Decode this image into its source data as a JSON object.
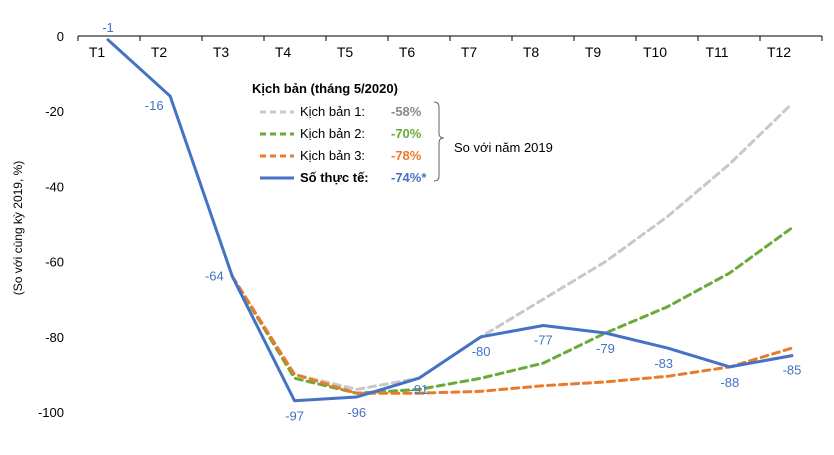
{
  "chart_data": {
    "type": "line",
    "ylabel": "(So với cùng kỳ 2019, %)",
    "ylim": [
      -100,
      0
    ],
    "yticks": [
      0,
      -20,
      -40,
      -60,
      -80,
      -100
    ],
    "categories": [
      "T1",
      "T2",
      "T3",
      "T4",
      "T5",
      "T6",
      "T7",
      "T8",
      "T9",
      "T10",
      "T11",
      "T12"
    ],
    "legend_title": "Kịch bản (tháng 5/2020)",
    "compare_label": "So với năm 2019",
    "colors": {
      "kb1": "#c8c8c8",
      "kb2": "#6aaa3a",
      "kb3": "#e87b2c",
      "actual": "#4472c4"
    },
    "series": [
      {
        "name": "Kịch bản 1:",
        "value_label": "-58%",
        "style": "dashed",
        "color_key": "kb1",
        "values": [
          null,
          null,
          -64,
          -90,
          -94,
          -91,
          -80,
          -70,
          -60,
          -48,
          -34,
          -18
        ]
      },
      {
        "name": "Kịch bản 2:",
        "value_label": "-70%",
        "style": "dashed",
        "color_key": "kb2",
        "values": [
          null,
          null,
          -64,
          -91,
          -95,
          -94,
          -91,
          -87,
          -79,
          -72,
          -63,
          -51
        ]
      },
      {
        "name": "Kịch bản 3:",
        "value_label": "-78%",
        "style": "dashed",
        "color_key": "kb3",
        "values": [
          null,
          null,
          -64,
          -90,
          -95,
          -95,
          -94.5,
          -93,
          -92,
          -90.5,
          -88,
          -83
        ]
      },
      {
        "name": "Số thực tế:",
        "value_label": "-74%*",
        "style": "solid",
        "color_key": "actual",
        "values": [
          -1,
          -16,
          -64,
          -97,
          -96,
          -91,
          -80,
          -77,
          -79,
          -83,
          -88,
          -85
        ],
        "data_labels": [
          "-1",
          "-16",
          "-64",
          "-97",
          "-96",
          "-91",
          "-80",
          "-77",
          "-79",
          "-83",
          "-88",
          "-85"
        ]
      }
    ]
  }
}
